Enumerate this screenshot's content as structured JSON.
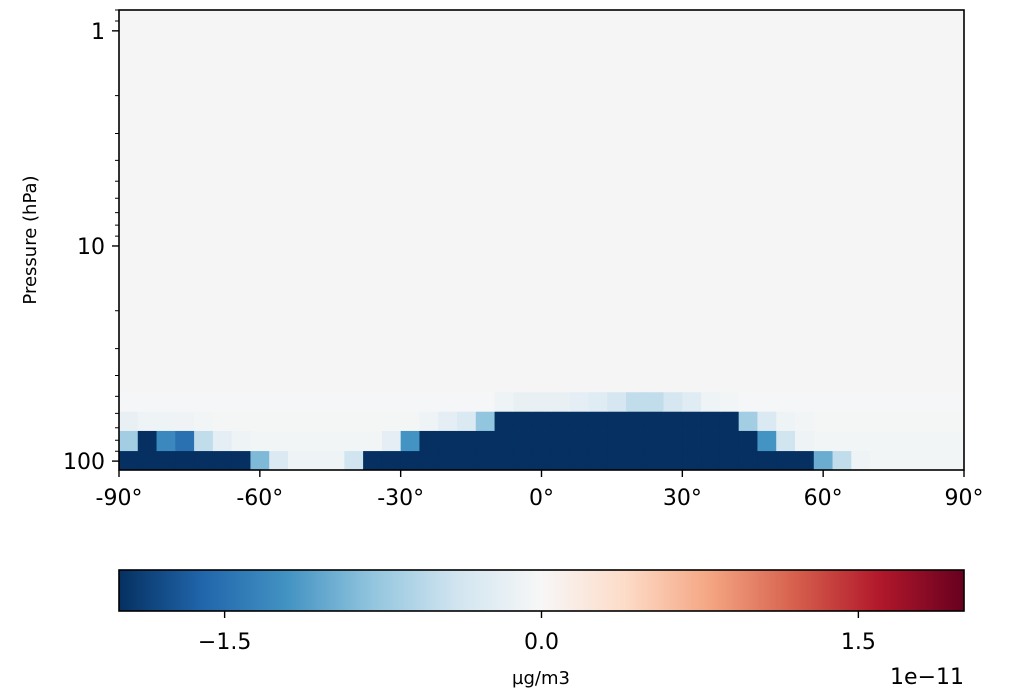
{
  "chart_data": {
    "type": "heatmap",
    "title": "",
    "xlabel": "",
    "ylabel": "Pressure (hPa)",
    "xlim": [
      -90,
      90
    ],
    "ylim_log": [
      110,
      0.8
    ],
    "y_scale": "log",
    "x_tick_labels": [
      "-90°",
      "-60°",
      "-30°",
      "0°",
      "30°",
      "60°",
      "90°"
    ],
    "x_tick_values": [
      -90,
      -60,
      -30,
      0,
      30,
      60,
      90
    ],
    "y_tick_labels": [
      "1",
      "10",
      "100"
    ],
    "y_tick_values": [
      1,
      10,
      100
    ],
    "colormap": "RdBu_r",
    "colorbar": {
      "label": "µg/m3",
      "offset_text": "1e−11",
      "vmin": -2.0,
      "vmax": 2.0,
      "tick_labels": [
        "−1.5",
        "0.0",
        "1.5"
      ],
      "tick_values": [
        -1.5,
        0.0,
        1.5
      ],
      "orientation": "horizontal",
      "location": "bottom"
    },
    "lat_centers": [
      -88,
      -84,
      -80,
      -76,
      -72,
      -68,
      -64,
      -60,
      -56,
      -52,
      -48,
      -44,
      -40,
      -36,
      -32,
      -28,
      -24,
      -20,
      -16,
      -12,
      -8,
      -4,
      0,
      4,
      8,
      12,
      16,
      20,
      24,
      28,
      32,
      36,
      40,
      44,
      48,
      52,
      56,
      60,
      64,
      68,
      72,
      76,
      80,
      84,
      88
    ],
    "pressure_levels": [
      100,
      80,
      65,
      53
    ],
    "values_1e-11": [
      [
        -2.0,
        -2.0,
        -2.0,
        -2.0,
        -2.0,
        -2.0,
        -2.0,
        -0.9,
        -0.3,
        -0.1,
        -0.1,
        -0.1,
        -0.4,
        -2.0,
        -2.0,
        -2.0,
        -2.0,
        -2.0,
        -2.0,
        -2.0,
        -2.0,
        -2.0,
        -2.0,
        -2.0,
        -2.0,
        -2.0,
        -2.0,
        -2.0,
        -2.0,
        -2.0,
        -2.0,
        -2.0,
        -2.0,
        -2.0,
        -2.0,
        -2.0,
        -2.0,
        -1.0,
        -0.5,
        -0.1,
        -0.05,
        -0.05,
        -0.05,
        -0.05,
        -0.05
      ],
      [
        -0.7,
        -2.0,
        -1.3,
        -1.5,
        -0.5,
        -0.2,
        -0.1,
        -0.05,
        -0.05,
        -0.05,
        -0.05,
        -0.05,
        -0.05,
        -0.05,
        -0.2,
        -1.2,
        -2.0,
        -2.0,
        -2.0,
        -2.0,
        -2.0,
        -2.0,
        -2.0,
        -2.0,
        -2.0,
        -2.0,
        -2.0,
        -2.0,
        -2.0,
        -2.0,
        -2.0,
        -2.0,
        -2.0,
        -2.0,
        -1.2,
        -0.4,
        -0.1,
        -0.05,
        -0.05,
        -0.05,
        -0.05,
        -0.05,
        -0.05,
        -0.05,
        -0.05
      ],
      [
        -0.15,
        -0.1,
        -0.1,
        -0.08,
        -0.05,
        -0.03,
        -0.03,
        -0.03,
        -0.03,
        -0.03,
        -0.03,
        -0.03,
        -0.03,
        -0.03,
        -0.03,
        -0.03,
        -0.1,
        -0.2,
        -0.3,
        -0.8,
        -2.0,
        -2.0,
        -2.0,
        -2.0,
        -2.0,
        -2.0,
        -2.0,
        -2.0,
        -2.0,
        -2.0,
        -2.0,
        -2.0,
        -2.0,
        -0.7,
        -0.3,
        -0.1,
        -0.05,
        -0.03,
        -0.03,
        -0.03,
        -0.03,
        -0.03,
        -0.03,
        -0.03,
        -0.03
      ],
      [
        -0.02,
        -0.02,
        -0.02,
        -0.02,
        -0.02,
        -0.02,
        -0.02,
        -0.02,
        -0.02,
        -0.02,
        -0.02,
        -0.02,
        -0.02,
        -0.02,
        -0.02,
        -0.02,
        -0.02,
        -0.02,
        -0.02,
        -0.02,
        -0.1,
        -0.15,
        -0.15,
        -0.15,
        -0.2,
        -0.25,
        -0.35,
        -0.5,
        -0.5,
        -0.35,
        -0.25,
        -0.1,
        -0.05,
        -0.02,
        -0.02,
        -0.02,
        -0.02,
        -0.02,
        -0.02,
        -0.02,
        -0.02,
        -0.02,
        -0.02,
        -0.02,
        -0.02
      ]
    ],
    "background_value": 0.0,
    "grid": false,
    "legend": "none"
  }
}
